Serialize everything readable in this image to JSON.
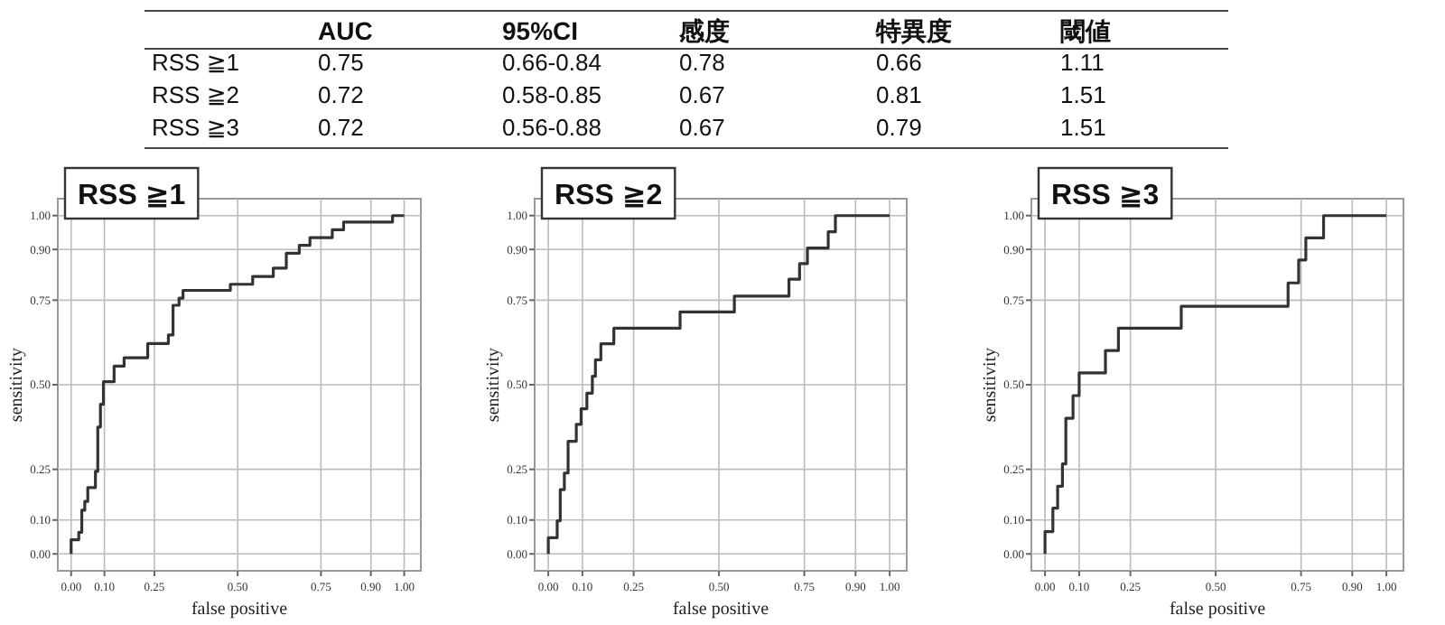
{
  "chart_data": [
    {
      "type": "other",
      "categories": [
        "AUC",
        "95%CI",
        "感度",
        "特異度",
        "閾値"
      ],
      "y_categories": [
        "RSS ≧1",
        "RSS ≧2",
        "RSS ≧3"
      ],
      "cell_labels": [
        [
          "0.75",
          "0.66-0.84",
          "0.78",
          "0.66",
          "1.11"
        ],
        [
          "0.72",
          "0.58-0.85",
          "0.67",
          "0.81",
          "1.51"
        ],
        [
          "0.72",
          "0.56-0.88",
          "0.67",
          "0.79",
          "1.51"
        ]
      ]
    },
    {
      "type": "step",
      "title": "RSS ≧1",
      "xlabel": "false positive",
      "ylabel": "sensitivity",
      "grid": true,
      "color": "#333333",
      "xlim": [
        -0.04,
        1.05
      ],
      "ylim": [
        -0.05,
        1.05
      ],
      "xticks": [
        {
          "value": 0,
          "label": "0.00"
        },
        {
          "value": 0.1,
          "label": "0.10"
        },
        {
          "value": 0.25,
          "label": "0.25"
        },
        {
          "value": 0.5,
          "label": "0.50"
        },
        {
          "value": 0.75,
          "label": "0.75"
        },
        {
          "value": 0.9,
          "label": "0.90"
        },
        {
          "value": 1,
          "label": "1.00"
        }
      ],
      "yticks": [
        {
          "value": 0,
          "label": "0.00"
        },
        {
          "value": 0.1,
          "label": "0.10"
        },
        {
          "value": 0.25,
          "label": "0.25"
        },
        {
          "value": 0.5,
          "label": "0.50"
        },
        {
          "value": 0.75,
          "label": "0.75"
        },
        {
          "value": 0.9,
          "label": "0.90"
        },
        {
          "value": 1,
          "label": "1.00"
        }
      ],
      "x": [
        0,
        0,
        0.023,
        0.032,
        0.041,
        0.05,
        0.073,
        0.08,
        0.088,
        0.097,
        0.129,
        0.159,
        0.23,
        0.292,
        0.306,
        0.324,
        0.336,
        0.478,
        0.545,
        0.607,
        0.646,
        0.685,
        0.717,
        0.784,
        0.818,
        0.965,
        1.0
      ],
      "values": [
        0,
        0.042,
        0.064,
        0.129,
        0.155,
        0.196,
        0.244,
        0.375,
        0.442,
        0.509,
        0.555,
        0.58,
        0.622,
        0.647,
        0.735,
        0.756,
        0.779,
        0.797,
        0.82,
        0.845,
        0.889,
        0.912,
        0.935,
        0.958,
        0.981,
        1.0,
        1.0
      ]
    },
    {
      "type": "step",
      "title": "RSS ≧2",
      "xlabel": "false positive",
      "ylabel": "sensitivity",
      "grid": true,
      "color": "#333333",
      "xlim": [
        -0.04,
        1.05
      ],
      "ylim": [
        -0.05,
        1.05
      ],
      "xticks": [
        {
          "value": 0,
          "label": "0.00"
        },
        {
          "value": 0.1,
          "label": "0.10"
        },
        {
          "value": 0.25,
          "label": "0.25"
        },
        {
          "value": 0.5,
          "label": "0.50"
        },
        {
          "value": 0.75,
          "label": "0.75"
        },
        {
          "value": 0.9,
          "label": "0.90"
        },
        {
          "value": 1,
          "label": "1.00"
        }
      ],
      "yticks": [
        {
          "value": 0,
          "label": "0.00"
        },
        {
          "value": 0.1,
          "label": "0.10"
        },
        {
          "value": 0.25,
          "label": "0.25"
        },
        {
          "value": 0.5,
          "label": "0.50"
        },
        {
          "value": 0.75,
          "label": "0.75"
        },
        {
          "value": 0.9,
          "label": "0.90"
        },
        {
          "value": 1,
          "label": "1.00"
        }
      ],
      "x": [
        0,
        0,
        0.026,
        0.035,
        0.047,
        0.058,
        0.082,
        0.096,
        0.113,
        0.129,
        0.138,
        0.154,
        0.192,
        0.386,
        0.545,
        0.705,
        0.736,
        0.759,
        0.82,
        0.841,
        1.0
      ],
      "values": [
        0,
        0.048,
        0.098,
        0.19,
        0.239,
        0.333,
        0.383,
        0.429,
        0.475,
        0.525,
        0.574,
        0.621,
        0.667,
        0.715,
        0.762,
        0.812,
        0.858,
        0.904,
        0.952,
        1.0,
        1.0
      ]
    },
    {
      "type": "step",
      "title": "RSS ≧3",
      "xlabel": "false positive",
      "ylabel": "sensitivity",
      "grid": true,
      "color": "#333333",
      "xlim": [
        -0.04,
        1.05
      ],
      "ylim": [
        -0.05,
        1.05
      ],
      "xticks": [
        {
          "value": 0,
          "label": "0.00"
        },
        {
          "value": 0.1,
          "label": "0.10"
        },
        {
          "value": 0.25,
          "label": "0.25"
        },
        {
          "value": 0.5,
          "label": "0.50"
        },
        {
          "value": 0.75,
          "label": "0.75"
        },
        {
          "value": 0.9,
          "label": "0.90"
        },
        {
          "value": 1,
          "label": "1.00"
        }
      ],
      "yticks": [
        {
          "value": 0,
          "label": "0.00"
        },
        {
          "value": 0.1,
          "label": "0.10"
        },
        {
          "value": 0.25,
          "label": "0.25"
        },
        {
          "value": 0.5,
          "label": "0.50"
        },
        {
          "value": 0.75,
          "label": "0.75"
        },
        {
          "value": 0.9,
          "label": "0.90"
        },
        {
          "value": 1,
          "label": "1.00"
        }
      ],
      "x": [
        0,
        0,
        0.023,
        0.037,
        0.051,
        0.061,
        0.082,
        0.1,
        0.177,
        0.215,
        0.399,
        0.712,
        0.743,
        0.764,
        0.816,
        1.0
      ],
      "values": [
        0,
        0.066,
        0.135,
        0.2,
        0.266,
        0.401,
        0.468,
        0.535,
        0.601,
        0.667,
        0.732,
        0.801,
        0.869,
        0.934,
        1.0,
        1.0
      ]
    }
  ]
}
